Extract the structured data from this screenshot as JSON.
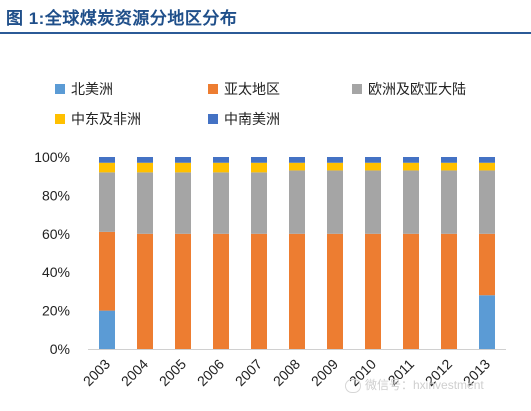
{
  "title": "图 1:全球煤炭资源分地区分布",
  "watermark": "微信号：hxinvestment",
  "colors": {
    "title": "#1f4f8a",
    "rule": "#2b5a97"
  },
  "chart_data": {
    "type": "bar",
    "stacked": true,
    "categories": [
      "2003",
      "2004",
      "2005",
      "2006",
      "2007",
      "2008",
      "2009",
      "2010",
      "2011",
      "2012",
      "2013"
    ],
    "series": [
      {
        "name": "北美洲",
        "color": "#5b9bd5",
        "values": [
          20,
          0,
          0,
          0,
          0,
          0,
          0,
          0,
          0,
          0,
          28
        ]
      },
      {
        "name": "亚太地区",
        "color": "#ed7d31",
        "values": [
          41,
          60,
          60,
          60,
          60,
          60,
          60,
          60,
          60,
          60,
          32
        ]
      },
      {
        "name": "欧洲及欧亚大陆",
        "color": "#a5a5a5",
        "values": [
          31,
          32,
          32,
          32,
          32,
          33,
          33,
          33,
          33,
          33,
          33
        ]
      },
      {
        "name": "中东及非洲",
        "color": "#ffc000",
        "values": [
          5,
          5,
          5,
          5,
          5,
          4,
          4,
          4,
          4,
          4,
          4
        ]
      },
      {
        "name": "中南美洲",
        "color": "#4472c4",
        "values": [
          3,
          3,
          3,
          3,
          3,
          3,
          3,
          3,
          3,
          3,
          3
        ]
      }
    ],
    "ylim": [
      0,
      100
    ],
    "yticks": [
      "0%",
      "20%",
      "40%",
      "60%",
      "80%",
      "100%"
    ],
    "grid": false,
    "legend_position": "top"
  }
}
